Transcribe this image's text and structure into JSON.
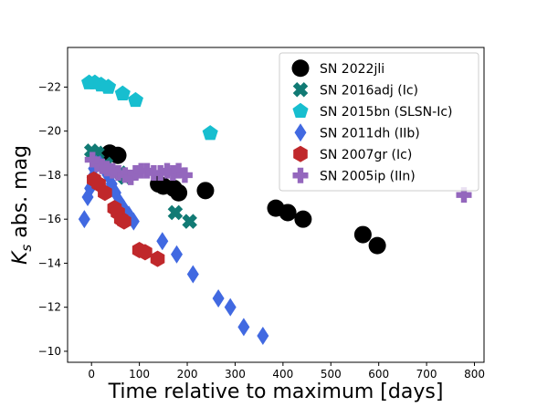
{
  "chart_data": {
    "type": "scatter",
    "title": "",
    "xlabel": "Time relative to maximum [days]",
    "ylabel_main": "K",
    "ylabel_sub": "s",
    "ylabel_rest": " abs. mag",
    "xlim": [
      -50,
      820
    ],
    "ylim": [
      -9.5,
      -23.8
    ],
    "y_inverted": true,
    "grid": false,
    "legend_position": "top-right",
    "x_ticks": [
      0,
      100,
      200,
      300,
      400,
      500,
      600,
      700,
      800
    ],
    "x_tick_labels": [
      "0",
      "100",
      "200",
      "300",
      "400",
      "500",
      "600",
      "700",
      "800"
    ],
    "y_ticks": [
      -22,
      -20,
      -18,
      -16,
      -14,
      -12,
      -10
    ],
    "y_tick_labels": [
      "−22",
      "−20",
      "−18",
      "−16",
      "−14",
      "−12",
      "−10"
    ],
    "series": [
      {
        "name": "SN 2022jli",
        "marker": "circle",
        "color": "#000000",
        "points": [
          [
            38,
            -19.0
          ],
          [
            55,
            -18.9
          ],
          [
            140,
            -17.6
          ],
          [
            150,
            -17.5
          ],
          [
            172,
            -17.4
          ],
          [
            182,
            -17.2
          ],
          [
            238,
            -17.3
          ],
          [
            385,
            -16.5
          ],
          [
            410,
            -16.3
          ],
          [
            442,
            -16.0
          ],
          [
            567,
            -15.3
          ],
          [
            597,
            -14.8
          ]
        ]
      },
      {
        "name": "SN 2016adj (Ic)",
        "marker": "x",
        "color": "#117a74",
        "points": [
          [
            0,
            -19.1
          ],
          [
            12,
            -19.0
          ],
          [
            30,
            -18.5
          ],
          [
            60,
            -18.1
          ],
          [
            70,
            -17.9
          ],
          [
            175,
            -16.3
          ],
          [
            205,
            -15.9
          ]
        ]
      },
      {
        "name": "SN 2015bn (SLSN-Ic)",
        "marker": "pentagon",
        "color": "#17becf",
        "points": [
          [
            -5,
            -22.2
          ],
          [
            7,
            -22.2
          ],
          [
            20,
            -22.1
          ],
          [
            35,
            -22.0
          ],
          [
            65,
            -21.7
          ],
          [
            92,
            -21.4
          ],
          [
            248,
            -19.9
          ]
        ]
      },
      {
        "name": "SN 2011dh (IIb)",
        "marker": "diamond",
        "color": "#4169e1",
        "points": [
          [
            -15,
            -16.0
          ],
          [
            -8,
            -17.0
          ],
          [
            -3,
            -17.4
          ],
          [
            2,
            -17.9
          ],
          [
            5,
            -18.3
          ],
          [
            10,
            -18.5
          ],
          [
            18,
            -18.5
          ],
          [
            26,
            -18.3
          ],
          [
            34,
            -18.0
          ],
          [
            42,
            -17.6
          ],
          [
            50,
            -17.2
          ],
          [
            58,
            -16.8
          ],
          [
            67,
            -16.5
          ],
          [
            78,
            -16.2
          ],
          [
            88,
            -15.9
          ],
          [
            148,
            -15.0
          ],
          [
            178,
            -14.4
          ],
          [
            212,
            -13.5
          ],
          [
            265,
            -12.4
          ],
          [
            290,
            -12.0
          ],
          [
            318,
            -11.1
          ],
          [
            358,
            -10.7
          ]
        ]
      },
      {
        "name": "SN 2007gr (Ic)",
        "marker": "hexagon",
        "color": "#c0282b",
        "points": [
          [
            5,
            -17.8
          ],
          [
            15,
            -17.6
          ],
          [
            28,
            -17.2
          ],
          [
            48,
            -16.5
          ],
          [
            55,
            -16.3
          ],
          [
            62,
            -16.0
          ],
          [
            68,
            -15.9
          ],
          [
            100,
            -14.6
          ],
          [
            112,
            -14.5
          ],
          [
            138,
            -14.2
          ]
        ]
      },
      {
        "name": "SN 2005ip (IIn)",
        "marker": "plus",
        "color": "#9467bd",
        "points": [
          [
            2,
            -18.7
          ],
          [
            12,
            -18.5
          ],
          [
            22,
            -18.4
          ],
          [
            32,
            -18.3
          ],
          [
            44,
            -18.2
          ],
          [
            56,
            -18.1
          ],
          [
            70,
            -18.0
          ],
          [
            82,
            -17.9
          ],
          [
            92,
            -18.1
          ],
          [
            104,
            -18.2
          ],
          [
            116,
            -18.2
          ],
          [
            130,
            -18.1
          ],
          [
            144,
            -18.1
          ],
          [
            158,
            -18.2
          ],
          [
            170,
            -18.1
          ],
          [
            182,
            -18.2
          ],
          [
            195,
            -18.0
          ],
          [
            778,
            -17.1
          ]
        ]
      }
    ]
  }
}
